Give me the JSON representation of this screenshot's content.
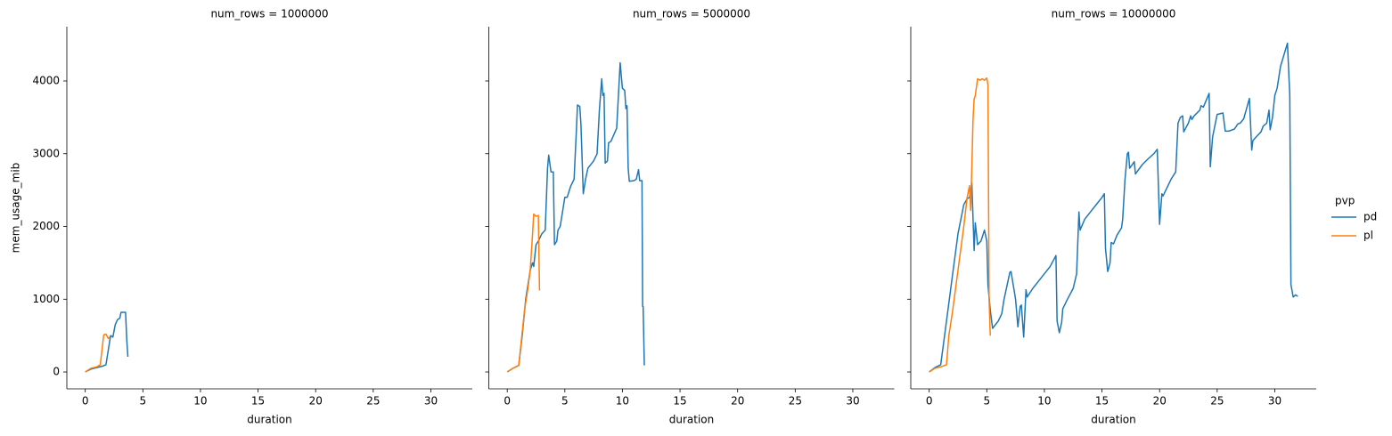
{
  "legend": {
    "title": "pvp"
  },
  "chart_data": [
    {
      "type": "line",
      "title": "num_rows = 1000000",
      "xlabel": "duration",
      "ylabel": "mem_usage_mib",
      "xlim": [
        -1.6,
        33.6
      ],
      "ylim": [
        -232,
        4746
      ],
      "xticks": [
        0,
        5,
        10,
        15,
        20,
        25,
        30
      ],
      "yticks": [
        0,
        1000,
        2000,
        3000,
        4000
      ],
      "ytick_labels": true,
      "series": [
        {
          "name": "pd",
          "color": "#1f77b4",
          "x": [
            0,
            0.5,
            1,
            1.5,
            1.8,
            2,
            2.2,
            2.4,
            2.6,
            2.8,
            3,
            3.1,
            3.5,
            3.6,
            3.7
          ],
          "values": [
            0,
            40,
            60,
            80,
            100,
            300,
            500,
            480,
            650,
            720,
            740,
            820,
            820,
            450,
            210
          ]
        },
        {
          "name": "pl",
          "color": "#ff7f0e",
          "x": [
            0,
            0.5,
            1,
            1.3,
            1.6,
            1.8,
            2.0,
            2.1
          ],
          "values": [
            0,
            50,
            70,
            100,
            510,
            520,
            460,
            480
          ]
        }
      ]
    },
    {
      "type": "line",
      "title": "num_rows = 5000000",
      "xlabel": "duration",
      "xlim": [
        -1.6,
        33.6
      ],
      "ylim": [
        -232,
        4746
      ],
      "xticks": [
        0,
        5,
        10,
        15,
        20,
        25,
        30
      ],
      "yticks": [
        0,
        1000,
        2000,
        3000,
        4000
      ],
      "ytick_labels": false,
      "series": [
        {
          "name": "pd",
          "color": "#1f77b4",
          "x": [
            0,
            0.5,
            1,
            1.3,
            1.6,
            2,
            2.2,
            2.3,
            2.5,
            2.7,
            3,
            3.3,
            3.5,
            3.6,
            3.8,
            4,
            4.1,
            4.3,
            4.4,
            4.6,
            4.8,
            5,
            5.2,
            5.5,
            5.8,
            6,
            6.1,
            6.3,
            6.4,
            6.6,
            6.8,
            7,
            7.5,
            7.8,
            8,
            8.2,
            8.3,
            8.4,
            8.5,
            8.7,
            8.8,
            9,
            9.5,
            9.8,
            10,
            10.2,
            10.3,
            10.4,
            10.5,
            10.6,
            11,
            11.2,
            11.4,
            11.5,
            11.7,
            11.75,
            11.8,
            11.9
          ],
          "values": [
            0,
            50,
            90,
            500,
            1000,
            1400,
            1500,
            1450,
            1750,
            1800,
            1900,
            1950,
            2800,
            2980,
            2750,
            2750,
            1750,
            1800,
            1950,
            2000,
            2200,
            2400,
            2400,
            2550,
            2650,
            3300,
            3670,
            3650,
            3400,
            2450,
            2650,
            2800,
            2900,
            3000,
            3600,
            4030,
            3800,
            3830,
            2870,
            2900,
            3150,
            3170,
            3350,
            4250,
            3900,
            3870,
            3620,
            3660,
            2800,
            2620,
            2630,
            2650,
            2780,
            2630,
            2630,
            900,
            900,
            90
          ]
        },
        {
          "name": "pl",
          "color": "#ff7f0e",
          "x": [
            0,
            0.5,
            1,
            1.5,
            1.8,
            2,
            2.2,
            2.3,
            2.5,
            2.7,
            2.8
          ],
          "values": [
            0,
            50,
            90,
            850,
            1150,
            1400,
            1900,
            2170,
            2140,
            2150,
            1120
          ]
        }
      ]
    },
    {
      "type": "line",
      "title": "num_rows = 10000000",
      "xlabel": "duration",
      "xlim": [
        -1.6,
        33.6
      ],
      "ylim": [
        -232,
        4746
      ],
      "xticks": [
        0,
        5,
        10,
        15,
        20,
        25,
        30
      ],
      "yticks": [
        0,
        1000,
        2000,
        3000,
        4000
      ],
      "ytick_labels": false,
      "series": [
        {
          "name": "pd",
          "color": "#1f77b4",
          "x": [
            0,
            0.5,
            1,
            1.5,
            2,
            2.5,
            3,
            3.3,
            3.5,
            3.7,
            3.9,
            4,
            4.2,
            4.5,
            4.8,
            5,
            5.1,
            5.3,
            5.5,
            6,
            6.3,
            6.5,
            7,
            7.1,
            7.5,
            7.7,
            7.9,
            8,
            8.2,
            8.4,
            8.5,
            9,
            9.5,
            10,
            10.5,
            11,
            11.1,
            11.3,
            11.5,
            11.6,
            12,
            12.5,
            12.8,
            13,
            13.1,
            13.5,
            14,
            14.5,
            15,
            15.2,
            15.3,
            15.5,
            15.7,
            15.8,
            16,
            16.3,
            16.7,
            16.8,
            17,
            17.2,
            17.3,
            17.4,
            17.8,
            17.9,
            18.5,
            19,
            19.5,
            19.8,
            20,
            20.2,
            20.3,
            21,
            21.4,
            21.6,
            21.8,
            22,
            22.1,
            22.5,
            22.7,
            22.8,
            23,
            23.5,
            23.6,
            23.8,
            24.3,
            24.4,
            24.6,
            25,
            25.5,
            25.7,
            26,
            26.5,
            26.8,
            27,
            27.3,
            27.8,
            28,
            28.1,
            28.5,
            28.8,
            29,
            29.3,
            29.5,
            29.6,
            29.8,
            30,
            30.2,
            30.5,
            31.1,
            31.3,
            31.4,
            31.6,
            31.8,
            32
          ],
          "values": [
            0,
            60,
            100,
            700,
            1300,
            1900,
            2300,
            2380,
            2400,
            2600,
            1670,
            2050,
            1750,
            1800,
            1950,
            1800,
            1200,
            850,
            600,
            700,
            800,
            1000,
            1370,
            1380,
            1000,
            620,
            900,
            920,
            480,
            1130,
            1030,
            1150,
            1250,
            1350,
            1450,
            1600,
            700,
            540,
            680,
            870,
            1000,
            1150,
            1350,
            2200,
            1950,
            2100,
            2200,
            2300,
            2400,
            2450,
            1700,
            1380,
            1500,
            1780,
            1760,
            1880,
            1980,
            2100,
            2650,
            3000,
            3020,
            2800,
            2890,
            2720,
            2850,
            2930,
            3000,
            3060,
            2030,
            2450,
            2420,
            2650,
            2750,
            3420,
            3500,
            3520,
            3300,
            3420,
            3520,
            3470,
            3520,
            3600,
            3660,
            3640,
            3830,
            2820,
            3230,
            3540,
            3560,
            3310,
            3310,
            3340,
            3410,
            3420,
            3480,
            3760,
            3050,
            3180,
            3250,
            3300,
            3380,
            3420,
            3600,
            3330,
            3500,
            3800,
            3900,
            4200,
            4520,
            3800,
            1200,
            1030,
            1060,
            1040
          ]
        },
        {
          "name": "pl",
          "color": "#ff7f0e",
          "x": [
            0,
            0.5,
            1,
            1.5,
            1.7,
            2,
            2.5,
            3,
            3.3,
            3.5,
            3.6,
            3.7,
            3.8,
            3.9,
            4,
            4.2,
            4.4,
            4.6,
            4.8,
            5,
            5.1,
            5.2,
            5.3
          ],
          "values": [
            0,
            50,
            70,
            100,
            500,
            800,
            1400,
            2000,
            2400,
            2560,
            2220,
            2800,
            3450,
            3750,
            3800,
            4030,
            4010,
            4030,
            4010,
            4040,
            3950,
            1000,
            500
          ]
        }
      ]
    }
  ]
}
